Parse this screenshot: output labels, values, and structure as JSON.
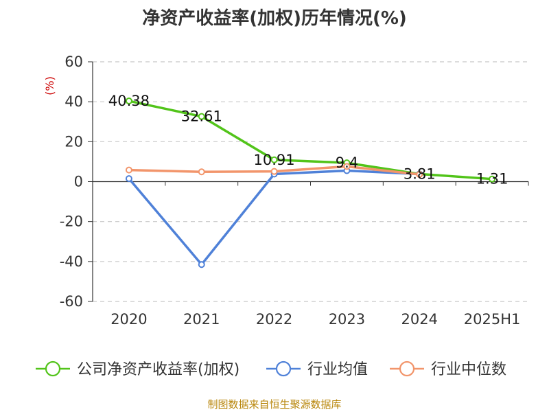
{
  "chart_data": {
    "type": "line",
    "title": "净资产收益率(加权)历年情况(%)",
    "y_unit": "(%)",
    "categories": [
      "2020",
      "2021",
      "2022",
      "2023",
      "2024",
      "2025H1"
    ],
    "ylim": [
      -60,
      60
    ],
    "yticks": [
      60,
      40,
      20,
      0,
      -20,
      -40,
      -60
    ],
    "grid": true,
    "legend_position": "bottom",
    "series": [
      {
        "name": "公司净资产收益率(加权)",
        "color": "#52c41a",
        "values": [
          40.38,
          32.61,
          10.91,
          9.4,
          3.81,
          1.31
        ],
        "labels": [
          "40.38",
          "32.61",
          "10.91",
          "9.4",
          "3.81",
          "1.31"
        ]
      },
      {
        "name": "行业均值",
        "color": "#4f81d8",
        "values": [
          1.5,
          -41.5,
          3.8,
          5.5,
          3.8,
          null
        ]
      },
      {
        "name": "行业中位数",
        "color": "#f2956b",
        "values": [
          5.8,
          4.9,
          5.1,
          7.6,
          3.6,
          null
        ]
      }
    ]
  },
  "source_note": "制图数据来自恒生聚源数据库"
}
